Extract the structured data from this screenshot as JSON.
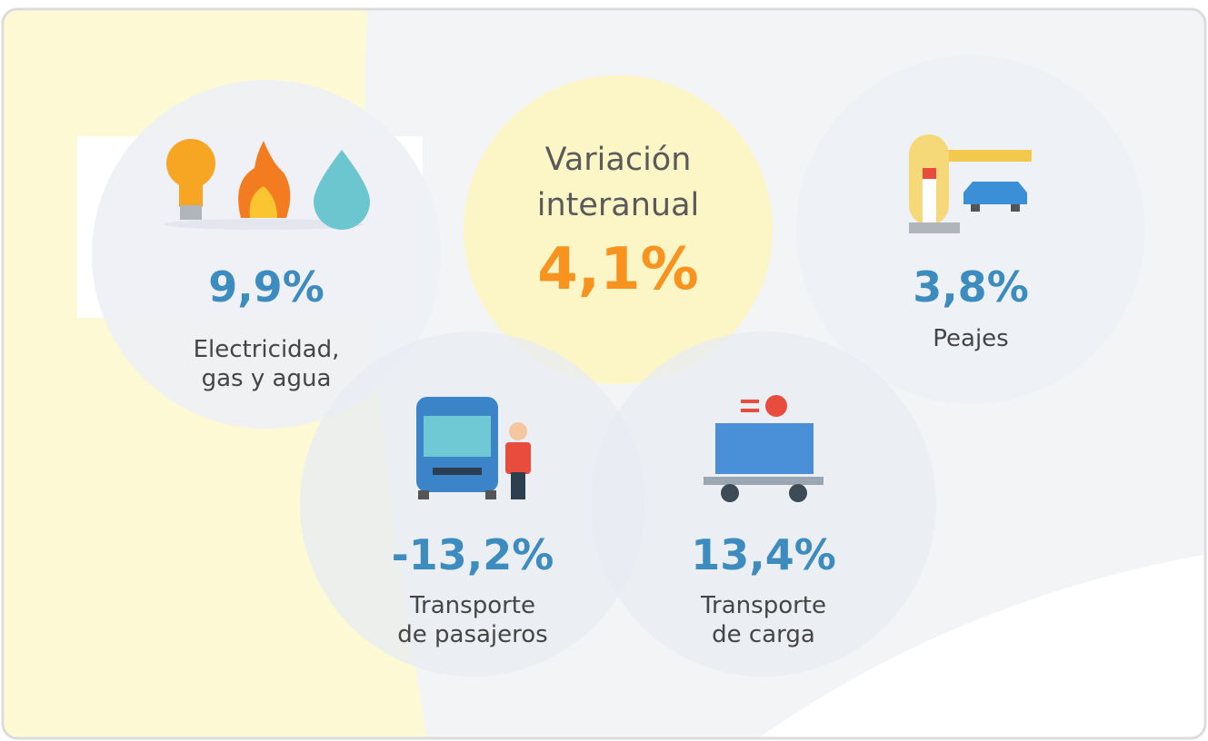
{
  "center": {
    "title_lines": [
      "Variación",
      "interanual"
    ],
    "value": "4,1%"
  },
  "items": [
    {
      "value": "9,9%",
      "label_lines": [
        "Electricidad,",
        "gas y agua"
      ]
    },
    {
      "value": "3,8%",
      "label_lines": [
        "Peajes"
      ]
    },
    {
      "value": "-13,2%",
      "label_lines": [
        "Transporte",
        "de pasajeros"
      ]
    },
    {
      "value": "13,4%",
      "label_lines": [
        "Transporte",
        "de carga"
      ]
    }
  ]
}
